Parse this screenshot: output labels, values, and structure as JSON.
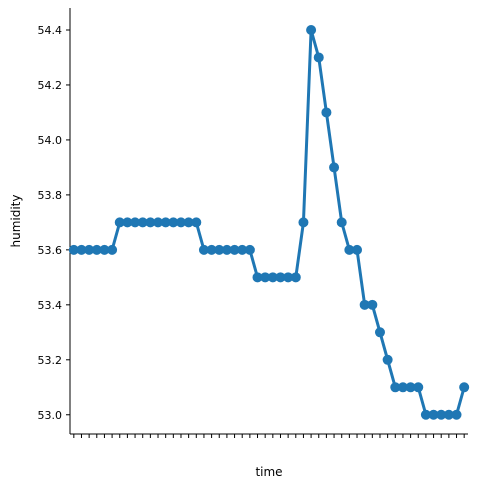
{
  "chart_data": {
    "type": "line",
    "title": "",
    "xlabel": "time",
    "ylabel": "humidity",
    "ylim": [
      52.93,
      54.48
    ],
    "yticks": [
      "53.0",
      "53.2",
      "53.4",
      "53.6",
      "53.8",
      "54.0",
      "54.2",
      "54.4"
    ],
    "grid": false,
    "legend": "none",
    "color": "#1f77b4",
    "x_tick_labels_note": "overlapping, unreadable",
    "values": [
      53.6,
      53.6,
      53.6,
      53.6,
      53.6,
      53.6,
      53.7,
      53.7,
      53.7,
      53.7,
      53.7,
      53.7,
      53.7,
      53.7,
      53.7,
      53.7,
      53.7,
      53.6,
      53.6,
      53.6,
      53.6,
      53.6,
      53.6,
      53.6,
      53.5,
      53.5,
      53.5,
      53.5,
      53.5,
      53.5,
      53.7,
      54.4,
      54.3,
      54.1,
      53.9,
      53.7,
      53.6,
      53.6,
      53.4,
      53.4,
      53.3,
      53.2,
      53.1,
      53.1,
      53.1,
      53.1,
      53.0,
      53.0,
      53.0,
      53.0,
      53.0,
      53.1
    ]
  }
}
